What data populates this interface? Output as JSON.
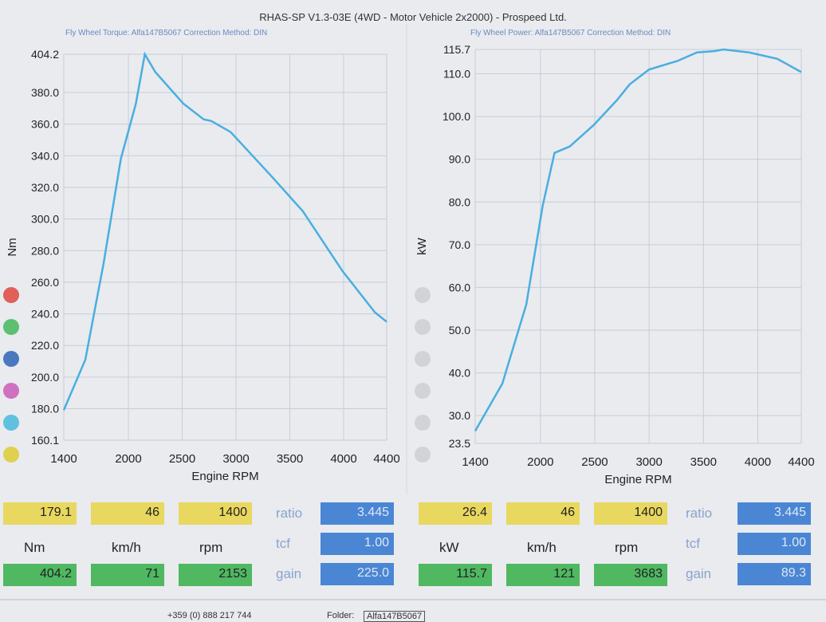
{
  "header": {
    "title": "RHAS-SP V1.3-03E  (4WD - Motor Vehicle 2x2000) - Prospeed Ltd.",
    "left_sub": "Fly Wheel Torque: Alfa147B5067    Correction Method: DIN",
    "right_sub": "Fly Wheel Power: Alfa147B5067    Correction Method: DIN"
  },
  "chart_data": [
    {
      "type": "line",
      "xlabel": "Engine RPM",
      "ylabel": "Nm",
      "xlim": [
        1400,
        4400
      ],
      "ylim": [
        160.1,
        404.2
      ],
      "grid": true,
      "xticks": [
        "1400",
        "2000",
        "2500",
        "3000",
        "3500",
        "4000",
        "4400"
      ],
      "yticks": [
        "404.2",
        "380.0",
        "360.0",
        "340.0",
        "320.0",
        "300.0",
        "280.0",
        "260.0",
        "240.0",
        "220.0",
        "200.0",
        "180.0",
        "160.1"
      ],
      "color": "#4aaee0",
      "x": [
        1400,
        1600,
        1770,
        1930,
        2070,
        2153,
        2250,
        2510,
        2700,
        2770,
        2950,
        3330,
        3620,
        3990,
        4290,
        4400
      ],
      "y": [
        179.1,
        211,
        272,
        338,
        373,
        404.2,
        393,
        373,
        363,
        362,
        355,
        327,
        305,
        267,
        241,
        235
      ]
    },
    {
      "type": "line",
      "xlabel": "Engine RPM",
      "ylabel": "kW",
      "xlim": [
        1400,
        4400
      ],
      "ylim": [
        23.5,
        115.7
      ],
      "grid": true,
      "xticks": [
        "1400",
        "2000",
        "2500",
        "3000",
        "3500",
        "4000",
        "4400"
      ],
      "yticks": [
        "115.7",
        "110.0",
        "100.0",
        "90.0",
        "80.0",
        "70.0",
        "60.0",
        "50.0",
        "40.0",
        "30.0",
        "23.5"
      ],
      "color": "#4aaee0",
      "x": [
        1400,
        1650,
        1870,
        2020,
        2130,
        2270,
        2490,
        2710,
        2820,
        3000,
        3260,
        3440,
        3600,
        3683,
        3920,
        4180,
        4400
      ],
      "y": [
        26.4,
        37.5,
        56,
        79,
        91.5,
        93,
        98,
        104,
        107.5,
        111,
        113,
        115,
        115.3,
        115.7,
        115,
        113.5,
        110.4
      ]
    }
  ],
  "left_panel": {
    "row1": [
      "179.1",
      "46",
      "1400"
    ],
    "units": [
      "Nm",
      "km/h",
      "rpm"
    ],
    "row2": [
      "404.2",
      "71",
      "2153"
    ],
    "labels": [
      "ratio",
      "tcf",
      "gain"
    ],
    "values": [
      "3.445",
      "1.00",
      "225.0"
    ]
  },
  "right_panel": {
    "row1": [
      "26.4",
      "46",
      "1400"
    ],
    "units": [
      "kW",
      "km/h",
      "rpm"
    ],
    "row2": [
      "115.7",
      "121",
      "3683"
    ],
    "labels": [
      "ratio",
      "tcf",
      "gain"
    ],
    "values": [
      "3.445",
      "1.00",
      "89.3"
    ]
  },
  "footer": {
    "phone": "+359 (0) 888 217 744",
    "folder_label": "Folder:",
    "folder": "Alfa147B5067"
  },
  "legend_colors": [
    "#e0605a",
    "#5cc070",
    "#4a78c0",
    "#d070c0",
    "#60c0e0",
    "#e0d050"
  ]
}
